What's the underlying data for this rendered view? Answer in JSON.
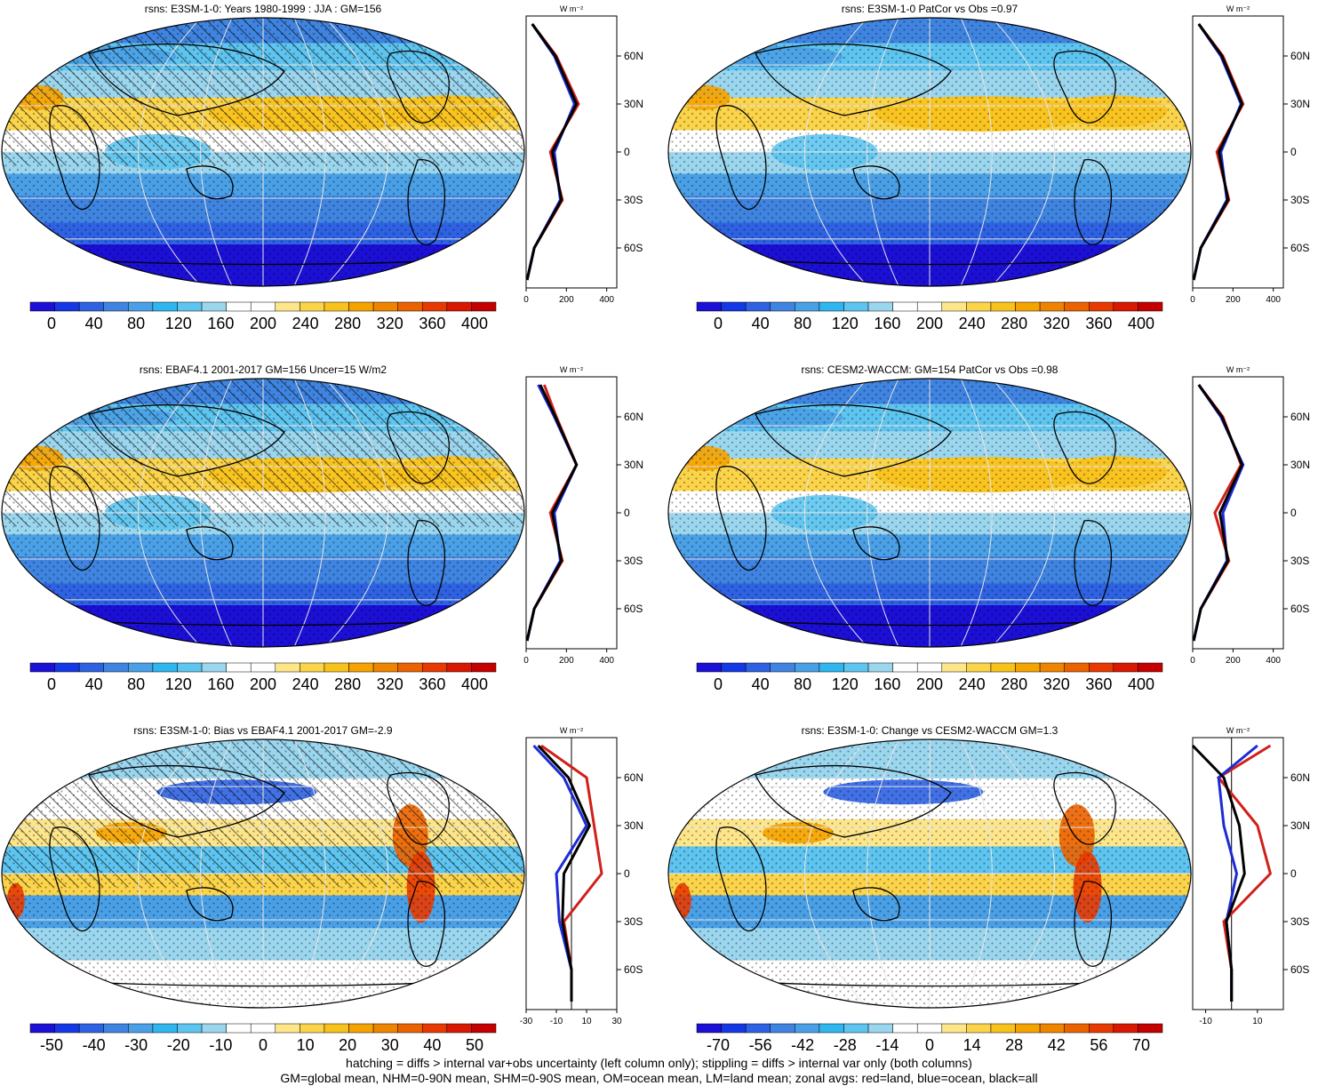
{
  "colors": {
    "scale": [
      "#1c0fd6",
      "#1538e6",
      "#2e62e3",
      "#3f84e0",
      "#4aa0e6",
      "#2fb6ee",
      "#5ec5f0",
      "#9bd6ef",
      "#ffffff",
      "#ffffff",
      "#fde68a",
      "#fbd44a",
      "#f8c21c",
      "#f5a300",
      "#ef8400",
      "#eb6200",
      "#e83a00",
      "#d81800",
      "#c40000"
    ],
    "land_line": "#d0201a",
    "ocean_line": "#1c2bd6",
    "all_line": "#000000"
  },
  "units": "W m⁻²",
  "lat_labels": [
    "60N",
    "30N",
    "0",
    "30S",
    "60S"
  ],
  "panels": [
    {
      "id": "e3sm-climo",
      "title": "rsns: E3SM-1-0: Years 1980-1999 : JJA : GM=156",
      "cbar_ticks": [
        "0",
        "40",
        "80",
        "120",
        "160",
        "200",
        "240",
        "280",
        "320",
        "360",
        "400"
      ],
      "zonal_ticks": [
        "0",
        "200",
        "400"
      ],
      "hatch": true,
      "style": "climo"
    },
    {
      "id": "e3sm-patcor",
      "title": "rsns: E3SM-1-0 PatCor vs Obs =0.97",
      "cbar_ticks": [
        "0",
        "40",
        "80",
        "120",
        "160",
        "200",
        "240",
        "280",
        "320",
        "360",
        "400"
      ],
      "zonal_ticks": [
        "0",
        "200",
        "400"
      ],
      "hatch": false,
      "style": "climo"
    },
    {
      "id": "ebaf-obs",
      "title": "rsns: EBAF4.1 2001-2017 GM=156 Uncer=15 W/m2",
      "cbar_ticks": [
        "0",
        "40",
        "80",
        "120",
        "160",
        "200",
        "240",
        "280",
        "320",
        "360",
        "400"
      ],
      "zonal_ticks": [
        "0",
        "200",
        "400"
      ],
      "hatch": true,
      "style": "climo"
    },
    {
      "id": "cesm2-waccm",
      "title": "rsns: CESM2-WACCM: GM=154 PatCor vs Obs =0.98",
      "cbar_ticks": [
        "0",
        "40",
        "80",
        "120",
        "160",
        "200",
        "240",
        "280",
        "320",
        "360",
        "400"
      ],
      "zonal_ticks": [
        "0",
        "200",
        "400"
      ],
      "hatch": false,
      "style": "climo"
    },
    {
      "id": "e3sm-bias",
      "title": "rsns: E3SM-1-0: Bias vs EBAF4.1 2001-2017 GM=-2.9",
      "cbar_ticks": [
        "-50",
        "-40",
        "-30",
        "-20",
        "-10",
        "0",
        "10",
        "20",
        "30",
        "40",
        "50"
      ],
      "zonal_ticks": [
        "-30",
        "-10",
        "10",
        "30"
      ],
      "hatch": true,
      "style": "diff"
    },
    {
      "id": "e3sm-change",
      "title": "rsns: E3SM-1-0: Change vs CESM2-WACCM GM=1.3",
      "cbar_ticks": [
        "-70",
        "-56",
        "-42",
        "-28",
        "-14",
        "0",
        "14",
        "28",
        "42",
        "56",
        "70"
      ],
      "zonal_ticks": [
        "-10",
        "10"
      ],
      "hatch": false,
      "style": "diff"
    }
  ],
  "footer": {
    "line1": "hatching = diffs > internal var+obs uncertainty (left column only); stippling = diffs > internal var only (both columns)",
    "line2": "GM=global mean, NHM=0-90N mean, SHM=0-90S mean, OM=ocean mean, LM=land mean; zonal avgs: red=land, blue=ocean, black=all"
  },
  "chart_data": [
    {
      "type": "heatmap",
      "title": "rsns: E3SM-1-0: Years 1980-1999 : JJA : GM=156",
      "colorbar_range": [
        0,
        400
      ],
      "zonal_profile": {
        "lat": [
          80,
          60,
          30,
          0,
          -30,
          -60,
          -80
        ],
        "ylabels": [
          "60N",
          "30N",
          "0",
          "30S",
          "60S"
        ],
        "xlim": [
          0,
          450
        ],
        "series": [
          {
            "values": [
              30,
              150,
              260,
              120,
              180,
              40,
              5
            ]
          },
          {
            "values": [
              30,
              140,
              240,
              140,
              170,
              40,
              5
            ]
          },
          {
            "values": [
              30,
              145,
              250,
              130,
              175,
              40,
              5
            ]
          }
        ]
      }
    },
    {
      "type": "heatmap",
      "title": "rsns: E3SM-1-0 PatCor vs Obs =0.97",
      "colorbar_range": [
        0,
        400
      ],
      "zonal_profile": {
        "lat": [
          80,
          60,
          30,
          0,
          -30,
          -60,
          -80
        ],
        "ylabels": [
          "60N",
          "30N",
          "0",
          "30S",
          "60S"
        ],
        "xlim": [
          0,
          450
        ],
        "series": [
          {
            "values": [
              30,
              150,
              250,
              120,
              180,
              40,
              5
            ]
          },
          {
            "values": [
              30,
              140,
              240,
              140,
              170,
              40,
              5
            ]
          },
          {
            "values": [
              30,
              145,
              245,
              130,
              175,
              40,
              5
            ]
          }
        ]
      }
    },
    {
      "type": "heatmap",
      "title": "rsns: EBAF4.1 2001-2017 GM=156 Uncer=15 W/m2",
      "colorbar_range": [
        0,
        400
      ],
      "zonal_profile": {
        "lat": [
          80,
          60,
          30,
          0,
          -30,
          -60,
          -80
        ],
        "ylabels": [
          "60N",
          "30N",
          "0",
          "30S",
          "60S"
        ],
        "xlim": [
          0,
          450
        ],
        "series": [
          {
            "values": [
              90,
              150,
              250,
              120,
              180,
              40,
              5
            ]
          },
          {
            "values": [
              60,
              140,
              250,
              140,
              170,
              40,
              5
            ]
          },
          {
            "values": [
              70,
              145,
              250,
              130,
              175,
              40,
              5
            ]
          }
        ]
      }
    },
    {
      "type": "heatmap",
      "title": "rsns: CESM2-WACCM: GM=154 PatCor vs Obs =0.98",
      "colorbar_range": [
        0,
        400
      ],
      "zonal_profile": {
        "lat": [
          80,
          60,
          30,
          0,
          -30,
          -60,
          -80
        ],
        "ylabels": [
          "60N",
          "30N",
          "0",
          "30S",
          "60S"
        ],
        "xlim": [
          0,
          450
        ],
        "series": [
          {
            "values": [
              30,
              150,
              240,
              110,
              180,
              40,
              5
            ]
          },
          {
            "values": [
              30,
              140,
              250,
              150,
              170,
              40,
              5
            ]
          },
          {
            "values": [
              30,
              145,
              245,
              135,
              175,
              40,
              5
            ]
          }
        ]
      }
    },
    {
      "type": "heatmap",
      "title": "rsns: E3SM-1-0: Bias vs EBAF4.1 2001-2017 GM=-2.9",
      "colorbar_range": [
        -50,
        50
      ],
      "zonal_profile": {
        "lat": [
          80,
          60,
          30,
          0,
          -30,
          -60,
          -80
        ],
        "ylabels": [
          "60N",
          "30N",
          "0",
          "30S",
          "60S"
        ],
        "xlim": [
          -30,
          30
        ],
        "series": [
          {
            "values": [
              -20,
              10,
              15,
              20,
              -5,
              0,
              0
            ]
          },
          {
            "values": [
              -25,
              -5,
              10,
              -10,
              -8,
              0,
              0
            ]
          },
          {
            "values": [
              -22,
              -2,
              12,
              -5,
              -6,
              0,
              0
            ]
          }
        ]
      }
    },
    {
      "type": "heatmap",
      "title": "rsns: E3SM-1-0: Change vs CESM2-WACCM GM=1.3",
      "colorbar_range": [
        -70,
        70
      ],
      "zonal_profile": {
        "lat": [
          80,
          60,
          30,
          0,
          -30,
          -60,
          -80
        ],
        "ylabels": [
          "60N",
          "30N",
          "0",
          "30S",
          "60S"
        ],
        "xlim": [
          -15,
          20
        ],
        "series": [
          {
            "values": [
              15,
              -5,
              10,
              15,
              -3,
              0,
              0
            ]
          },
          {
            "values": [
              10,
              -5,
              -3,
              2,
              -2,
              0,
              0
            ]
          },
          {
            "values": [
              -15,
              -3,
              3,
              5,
              -2,
              0,
              0
            ]
          }
        ]
      }
    }
  ]
}
